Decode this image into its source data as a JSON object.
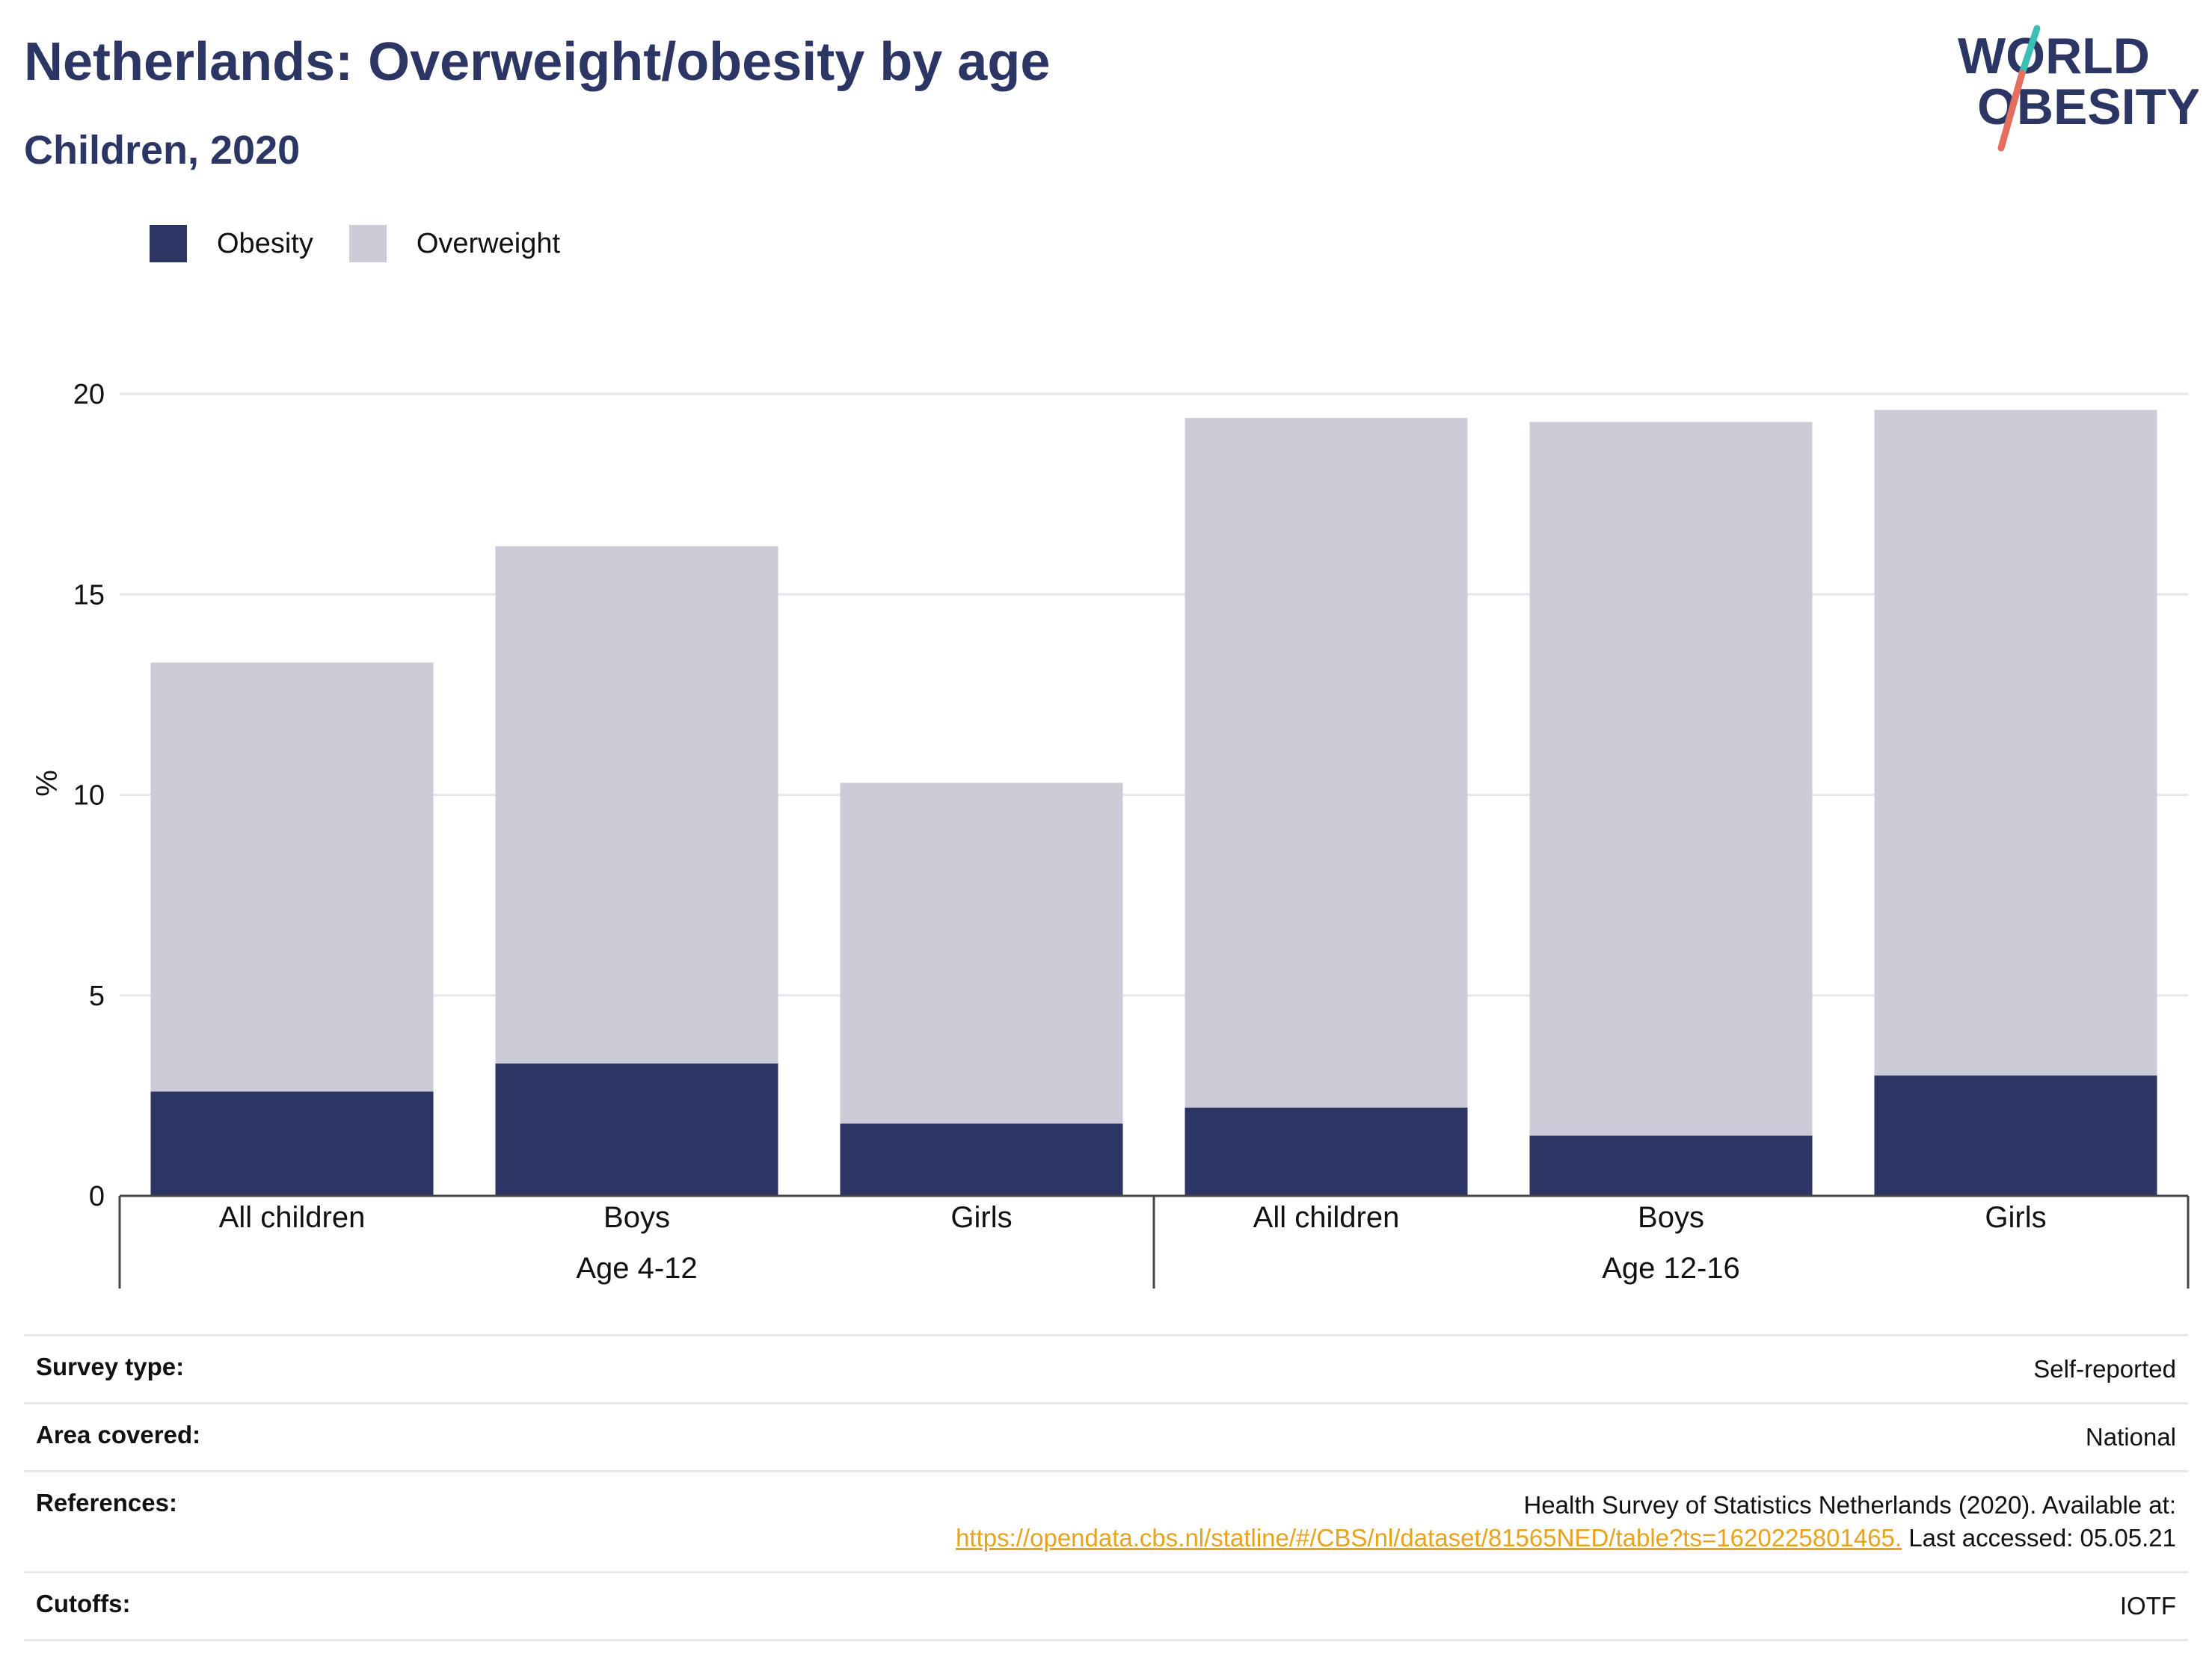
{
  "header": {
    "title": "Netherlands: Overweight/obesity by age",
    "subtitle": "Children, 2020"
  },
  "logo": {
    "line1": "WORLD",
    "line2": "OBESITY"
  },
  "colors": {
    "obesity": "#2b3665",
    "overweight": "#cbccd8",
    "accent_teal": "#3bbfb4",
    "accent_coral": "#e56f5e",
    "link": "#e8a21b"
  },
  "legend": {
    "obesity_label": "Obesity",
    "overweight_label": "Overweight"
  },
  "chart_data": {
    "type": "bar",
    "stacked": true,
    "ylabel": "%",
    "ylim": [
      0,
      20
    ],
    "yticks": [
      0,
      5,
      10,
      15,
      20
    ],
    "grid": true,
    "legend_position": "top-left",
    "categories": [
      "All children",
      "Boys",
      "Girls",
      "All children",
      "Boys",
      "Girls"
    ],
    "groups": [
      {
        "label": "Age 4-12",
        "span": [
          0,
          2
        ]
      },
      {
        "label": "Age 12-16",
        "span": [
          3,
          5
        ]
      }
    ],
    "series": [
      {
        "name": "Obesity",
        "values": [
          2.6,
          3.3,
          1.8,
          2.2,
          1.5,
          3.0
        ]
      },
      {
        "name": "Overweight",
        "values": [
          10.7,
          12.9,
          8.5,
          17.2,
          17.8,
          16.6
        ]
      }
    ]
  },
  "meta": {
    "survey_type_label": "Survey type:",
    "survey_type_value": "Self-reported",
    "area_label": "Area covered:",
    "area_value": "National",
    "references_label": "References:",
    "references_line1": "Health Survey of Statistics Netherlands (2020). Available at:",
    "references_link": "https://opendata.cbs.nl/statline/#/CBS/nl/dataset/81565NED/table?ts=1620225801465.",
    "references_accessed": " Last accessed: 05.05.21",
    "cutoffs_label": "Cutoffs:",
    "cutoffs_value": "IOTF"
  }
}
